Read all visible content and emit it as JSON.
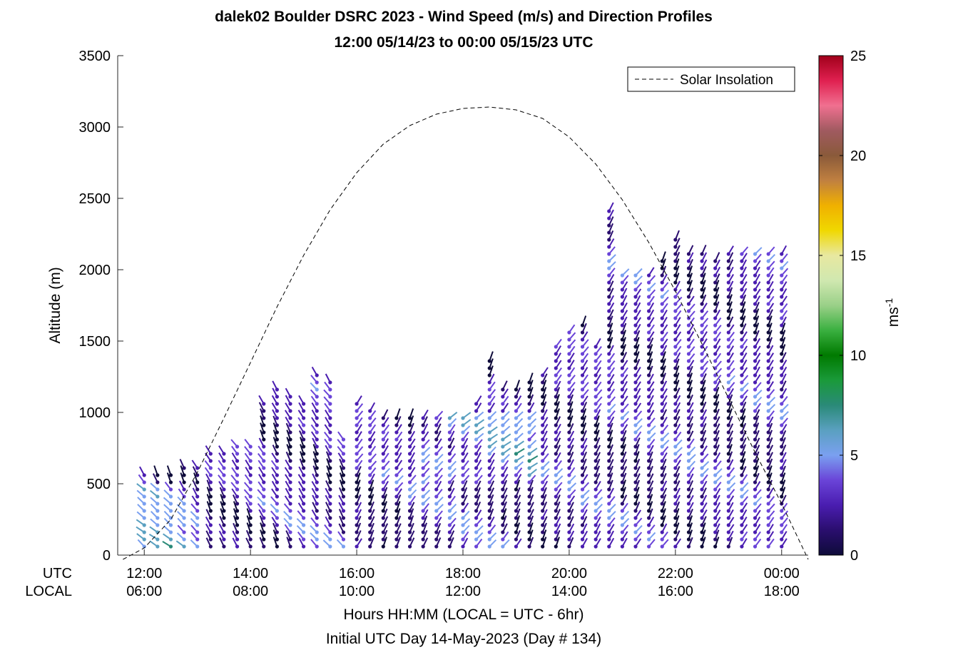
{
  "chart_data": {
    "type": "scatter",
    "title": "dalek02 Boulder DSRC 2023 - Wind Speed (m/s) and Direction Profiles",
    "subtitle": "12:00 05/14/23 to 00:00 05/15/23  UTC",
    "ylabel": "Altitude (m)",
    "xlabel": "Hours HH:MM  (LOCAL = UTC - 6hr)",
    "xlabel2": "Initial UTC Day 14-May-2023 (Day # 134)",
    "ylim": [
      0,
      3500
    ],
    "yticks": [
      "0",
      "500",
      "1000",
      "1500",
      "2000",
      "2500",
      "3000",
      "3500"
    ],
    "xlim_hours_utc": [
      11.5,
      24.5
    ],
    "xtick_row_labels": [
      "UTC",
      "LOCAL"
    ],
    "xticks_utc": [
      "12:00",
      "14:00",
      "16:00",
      "18:00",
      "20:00",
      "22:00",
      "00:00"
    ],
    "xticks_local": [
      "06:00",
      "08:00",
      "10:00",
      "12:00",
      "14:00",
      "16:00",
      "18:00"
    ],
    "colorbar": {
      "label": "ms",
      "label_sup": "-1",
      "range": [
        0,
        25
      ],
      "ticks": [
        "0",
        "5",
        "10",
        "15",
        "20",
        "25"
      ],
      "palette": [
        "#0e0b3a",
        "#2a0e6e",
        "#4a1db0",
        "#6a44d8",
        "#7aa0f0",
        "#5aa0c0",
        "#2a8a78",
        "#1a9a3a",
        "#007a00",
        "#3ab040",
        "#9ad088",
        "#d0e8b0",
        "#e8e8a0",
        "#f0d800",
        "#f0b000",
        "#c08040",
        "#8a5a3a",
        "#a05a60",
        "#f07090",
        "#e02050",
        "#a0001a"
      ]
    },
    "legend": {
      "entries": [
        "Solar Insolation"
      ],
      "placement": "top-right"
    },
    "series": [
      {
        "name": "Solar Insolation",
        "style": "dashed",
        "points": [
          [
            11.6,
            -30
          ],
          [
            12.0,
            50
          ],
          [
            12.5,
            250
          ],
          [
            13.0,
            580
          ],
          [
            13.5,
            960
          ],
          [
            14.0,
            1350
          ],
          [
            14.5,
            1740
          ],
          [
            15.0,
            2100
          ],
          [
            15.5,
            2420
          ],
          [
            16.0,
            2680
          ],
          [
            16.5,
            2880
          ],
          [
            17.0,
            3010
          ],
          [
            17.5,
            3090
          ],
          [
            18.0,
            3130
          ],
          [
            18.5,
            3140
          ],
          [
            19.0,
            3120
          ],
          [
            19.5,
            3060
          ],
          [
            20.0,
            2930
          ],
          [
            20.5,
            2740
          ],
          [
            21.0,
            2490
          ],
          [
            21.5,
            2190
          ],
          [
            22.0,
            1850
          ],
          [
            22.5,
            1480
          ],
          [
            23.0,
            1100
          ],
          [
            23.5,
            720
          ],
          [
            24.0,
            360
          ],
          [
            24.5,
            -30
          ]
        ]
      },
      {
        "name": "Wind barbs",
        "columns": [
          {
            "t": 12.0,
            "top": 580
          },
          {
            "t": 12.25,
            "top": 580
          },
          {
            "t": 12.5,
            "top": 580
          },
          {
            "t": 12.75,
            "top": 620
          },
          {
            "t": 13.0,
            "top": 620
          },
          {
            "t": 13.25,
            "top": 740
          },
          {
            "t": 13.5,
            "top": 740
          },
          {
            "t": 13.75,
            "top": 800
          },
          {
            "t": 14.0,
            "top": 800
          },
          {
            "t": 14.25,
            "top": 1100
          },
          {
            "t": 14.5,
            "top": 1160
          },
          {
            "t": 14.75,
            "top": 1120
          },
          {
            "t": 15.0,
            "top": 1060
          },
          {
            "t": 15.25,
            "top": 1260
          },
          {
            "t": 15.5,
            "top": 1220
          },
          {
            "t": 15.75,
            "top": 840
          },
          {
            "t": 16.0,
            "top": 1100
          },
          {
            "t": 16.25,
            "top": 1040
          },
          {
            "t": 16.5,
            "top": 960
          },
          {
            "t": 16.75,
            "top": 980
          },
          {
            "t": 17.0,
            "top": 960
          },
          {
            "t": 17.25,
            "top": 960
          },
          {
            "t": 17.5,
            "top": 960
          },
          {
            "t": 17.75,
            "top": 960
          },
          {
            "t": 18.0,
            "top": 960
          },
          {
            "t": 18.25,
            "top": 1100
          },
          {
            "t": 18.5,
            "top": 1400
          },
          {
            "t": 18.75,
            "top": 1180
          },
          {
            "t": 19.0,
            "top": 1180
          },
          {
            "t": 19.25,
            "top": 1240
          },
          {
            "t": 19.5,
            "top": 1280
          },
          {
            "t": 19.75,
            "top": 1480
          },
          {
            "t": 20.0,
            "top": 1560
          },
          {
            "t": 20.25,
            "top": 1640
          },
          {
            "t": 20.5,
            "top": 1480
          },
          {
            "t": 20.75,
            "top": 2430
          },
          {
            "t": 21.0,
            "top": 2000
          },
          {
            "t": 21.25,
            "top": 2000
          },
          {
            "t": 21.5,
            "top": 2000
          },
          {
            "t": 21.75,
            "top": 2060
          },
          {
            "t": 22.0,
            "top": 2240
          },
          {
            "t": 22.25,
            "top": 2140
          },
          {
            "t": 22.5,
            "top": 2120
          },
          {
            "t": 22.75,
            "top": 2100
          },
          {
            "t": 23.0,
            "top": 2120
          },
          {
            "t": 23.25,
            "top": 2120
          },
          {
            "t": 23.5,
            "top": 2120
          },
          {
            "t": 23.75,
            "top": 2120
          },
          {
            "t": 24.0,
            "top": 2140
          }
        ]
      }
    ]
  }
}
